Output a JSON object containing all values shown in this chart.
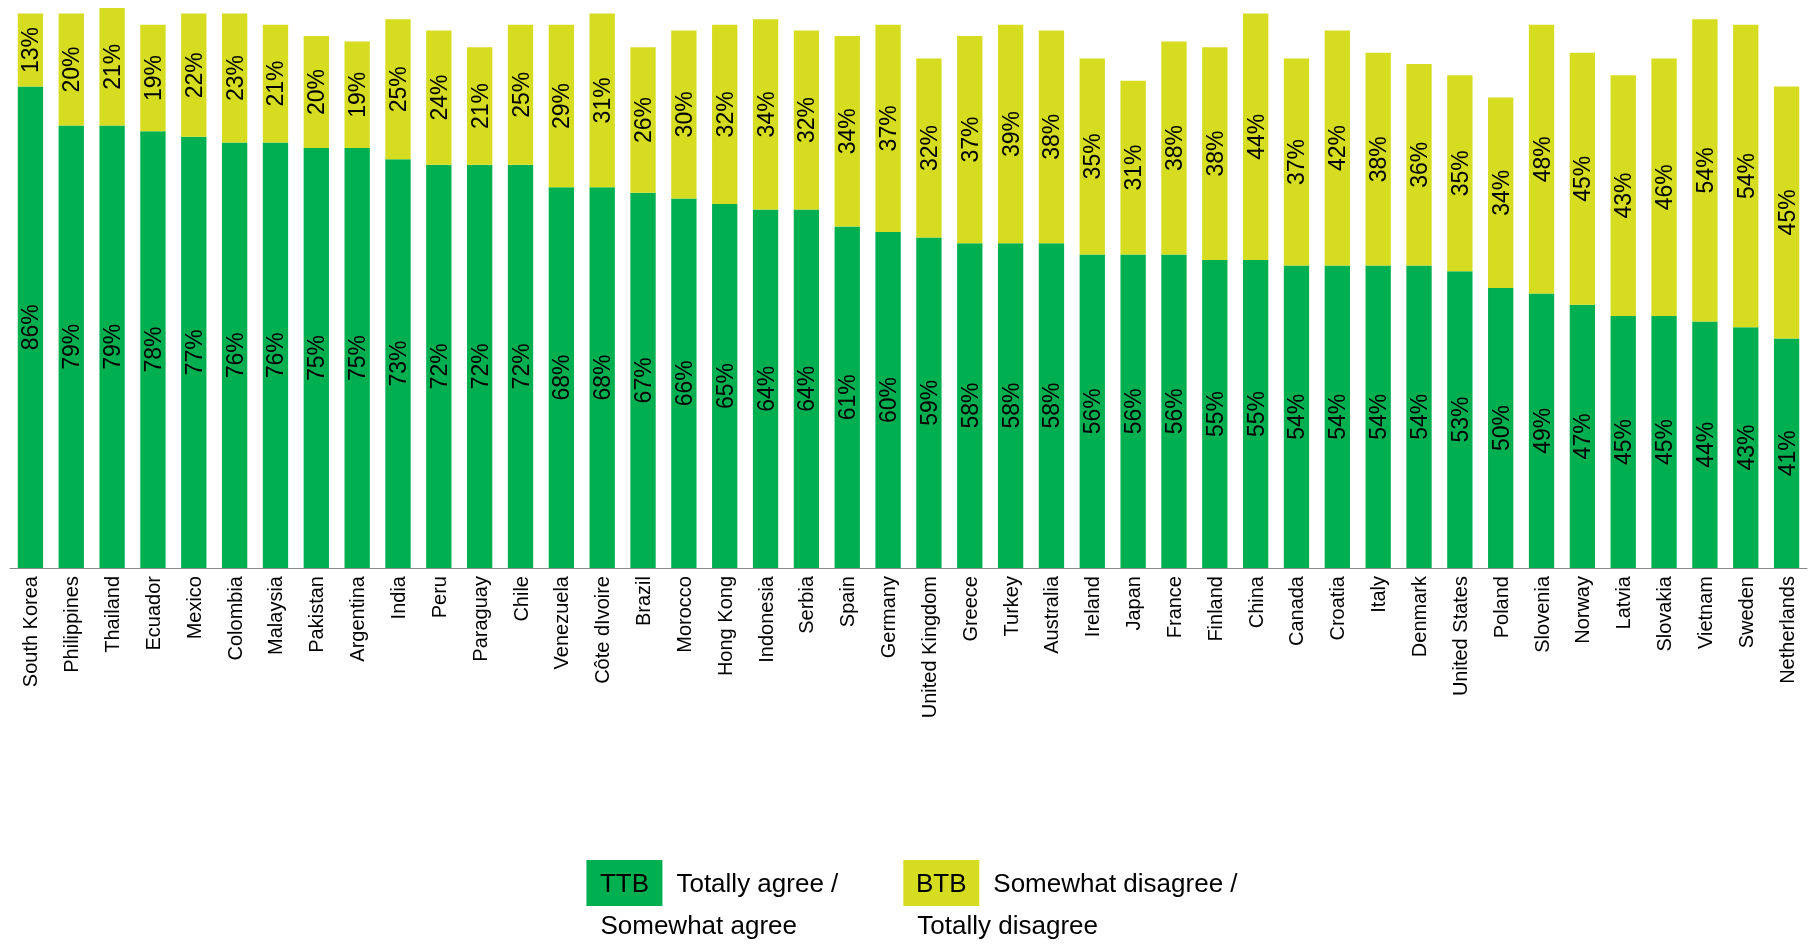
{
  "chart_data": {
    "type": "bar",
    "stacked": true,
    "legend": "bottom",
    "categories": [
      "South Korea",
      "Philippines",
      "Thailand",
      "Ecuador",
      "Mexico",
      "Colombia",
      "Malaysia",
      "Pakistan",
      "Argentina",
      "India",
      "Peru",
      "Paraguay",
      "Chile",
      "Venezuela",
      "Côte dIvoire",
      "Brazil",
      "Morocco",
      "Hong Kong",
      "Indonesia",
      "Serbia",
      "Spain",
      "Germany",
      "United Kingdom",
      "Greece",
      "Turkey",
      "Australia",
      "Ireland",
      "Japan",
      "France",
      "Finland",
      "China",
      "Canada",
      "Croatia",
      "Italy",
      "Denmark",
      "United States",
      "Poland",
      "Slovenia",
      "Norway",
      "Latvia",
      "Slovakia",
      "Vietnam",
      "Sweden",
      "Netherlands"
    ],
    "series": [
      {
        "name": "Totally agree / Somewhat agree",
        "color": "#00b050",
        "values": [
          86,
          79,
          79,
          78,
          77,
          76,
          76,
          75,
          75,
          73,
          72,
          72,
          72,
          68,
          68,
          67,
          66,
          65,
          64,
          64,
          61,
          60,
          59,
          58,
          58,
          58,
          56,
          56,
          56,
          55,
          55,
          54,
          54,
          54,
          54,
          53,
          50,
          49,
          47,
          45,
          45,
          44,
          43,
          41
        ],
        "value_labels": [
          "86%",
          "79%",
          "79%",
          "78%",
          "77%",
          "76%",
          "76%",
          "75%",
          "75%",
          "73%",
          "72%",
          "72%",
          "72%",
          "68%",
          "68%",
          "67%",
          "66%",
          "65%",
          "64%",
          "64%",
          "61%",
          "60%",
          "59%",
          "58%",
          "58%",
          "58%",
          "56%",
          "56%",
          "56%",
          "55%",
          "55%",
          "54%",
          "54%",
          "54%",
          "54%",
          "53%",
          "50%",
          "49%",
          "47%",
          "45%",
          "45%",
          "44%",
          "43%",
          "41%"
        ]
      },
      {
        "name": "Somewhat disagree / Totally disagree",
        "color": "#d6dc1f",
        "values": [
          13,
          20,
          21,
          19,
          22,
          23,
          21,
          20,
          19,
          25,
          24,
          21,
          25,
          29,
          31,
          26,
          30,
          32,
          34,
          32,
          34,
          37,
          32,
          37,
          39,
          38,
          35,
          31,
          38,
          38,
          44,
          37,
          42,
          38,
          36,
          35,
          34,
          48,
          45,
          43,
          46,
          54,
          54,
          45
        ],
        "value_labels": [
          "13%",
          "20%",
          "21%",
          "19%",
          "22%",
          "23%",
          "21%",
          "20%",
          "19%",
          "25%",
          "24%",
          "21%",
          "25%",
          "29%",
          "31%",
          "26%",
          "30%",
          "32%",
          "34%",
          "32%",
          "34%",
          "37%",
          "32%",
          "37%",
          "39%",
          "38%",
          "35%",
          "31%",
          "38%",
          "38%",
          "44%",
          "37%",
          "42%",
          "38%",
          "36%",
          "35%",
          "34%",
          "48%",
          "45%",
          "43%",
          "46%",
          "54%",
          "54%",
          "45%"
        ]
      }
    ],
    "annotations": [
      "TTB",
      "BTB"
    ]
  }
}
